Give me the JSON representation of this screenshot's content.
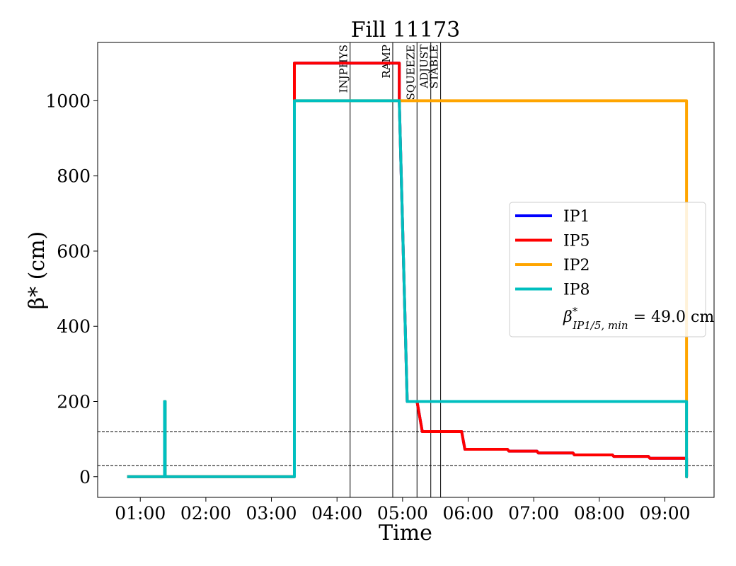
{
  "chart_data": {
    "type": "line",
    "title": "Fill 11173",
    "xlabel": "Time",
    "ylabel": "β* (cm)",
    "xlim_hours": [
      0.35,
      9.75
    ],
    "ylim": [
      -55,
      1155
    ],
    "x_ticks": [
      "01:00",
      "02:00",
      "03:00",
      "04:00",
      "05:00",
      "06:00",
      "07:00",
      "08:00",
      "09:00"
    ],
    "x_tick_hours": [
      1,
      2,
      3,
      4,
      5,
      6,
      7,
      8,
      9
    ],
    "y_ticks": [
      0,
      200,
      400,
      600,
      800,
      1000
    ],
    "grid": false,
    "legend_position": "center-right",
    "phases": [
      {
        "label": "INJPHYS",
        "hour": 4.2
      },
      {
        "label": "RAMP",
        "hour": 4.85
      },
      {
        "label": "SQUEEZE",
        "hour": 5.22
      },
      {
        "label": "ADJUST",
        "hour": 5.43
      },
      {
        "label": "STABLE",
        "hour": 5.58
      }
    ],
    "reference_lines": [
      120,
      30
    ],
    "series": [
      {
        "name": "IP1",
        "color": "#0000ff",
        "points": [
          [
            0.8,
            0
          ],
          [
            1.37,
            0
          ],
          [
            1.37,
            200
          ],
          [
            1.38,
            200
          ],
          [
            1.38,
            0
          ],
          [
            3.35,
            0
          ],
          [
            3.35,
            1100
          ],
          [
            4.95,
            1100
          ],
          [
            4.95,
            1000
          ],
          [
            5.07,
            200
          ],
          [
            5.22,
            200
          ],
          [
            5.3,
            120
          ],
          [
            5.9,
            120
          ],
          [
            5.95,
            73
          ],
          [
            6.6,
            73
          ],
          [
            6.62,
            68
          ],
          [
            7.05,
            68
          ],
          [
            7.07,
            63
          ],
          [
            7.6,
            63
          ],
          [
            7.62,
            58
          ],
          [
            8.2,
            58
          ],
          [
            8.22,
            54
          ],
          [
            8.75,
            54
          ],
          [
            8.77,
            49
          ],
          [
            9.33,
            49
          ],
          [
            9.33,
            0
          ],
          [
            9.35,
            0
          ]
        ]
      },
      {
        "name": "IP5",
        "color": "#ff0000",
        "points": [
          [
            0.8,
            0
          ],
          [
            1.37,
            0
          ],
          [
            1.37,
            200
          ],
          [
            1.38,
            200
          ],
          [
            1.38,
            0
          ],
          [
            3.35,
            0
          ],
          [
            3.35,
            1100
          ],
          [
            4.95,
            1100
          ],
          [
            4.95,
            1000
          ],
          [
            5.07,
            200
          ],
          [
            5.22,
            200
          ],
          [
            5.3,
            120
          ],
          [
            5.9,
            120
          ],
          [
            5.95,
            73
          ],
          [
            6.6,
            73
          ],
          [
            6.62,
            68
          ],
          [
            7.05,
            68
          ],
          [
            7.07,
            63
          ],
          [
            7.6,
            63
          ],
          [
            7.62,
            58
          ],
          [
            8.2,
            58
          ],
          [
            8.22,
            54
          ],
          [
            8.75,
            54
          ],
          [
            8.77,
            49
          ],
          [
            9.33,
            49
          ],
          [
            9.33,
            0
          ],
          [
            9.35,
            0
          ]
        ]
      },
      {
        "name": "IP2",
        "color": "#ffa500",
        "points": [
          [
            0.8,
            0
          ],
          [
            1.37,
            0
          ],
          [
            1.37,
            200
          ],
          [
            1.38,
            200
          ],
          [
            1.38,
            0
          ],
          [
            3.35,
            0
          ],
          [
            3.35,
            1000
          ],
          [
            9.33,
            1000
          ],
          [
            9.33,
            0
          ],
          [
            9.35,
            0
          ]
        ]
      },
      {
        "name": "IP8",
        "color": "#00bfbf",
        "points": [
          [
            0.8,
            0
          ],
          [
            1.37,
            0
          ],
          [
            1.37,
            200
          ],
          [
            1.38,
            200
          ],
          [
            1.38,
            0
          ],
          [
            3.35,
            0
          ],
          [
            3.35,
            1000
          ],
          [
            4.95,
            1000
          ],
          [
            5.07,
            200
          ],
          [
            9.33,
            200
          ],
          [
            9.33,
            0
          ],
          [
            9.35,
            0
          ]
        ]
      }
    ],
    "legend_note": {
      "prefix": "β",
      "sup": "*",
      "sub": "IP1/5, min",
      "value": " = 49.0 cm"
    }
  }
}
